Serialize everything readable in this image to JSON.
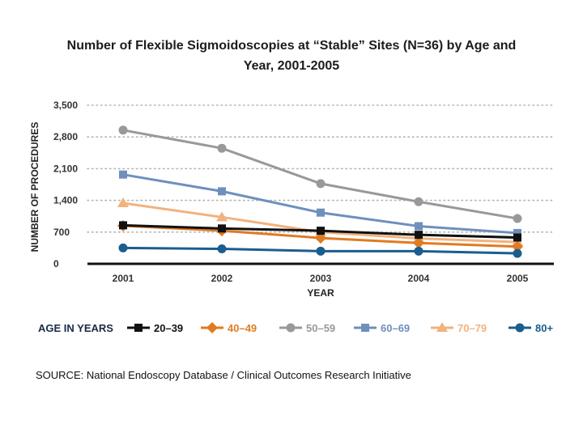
{
  "title_line1": "Number of Flexible Sigmoidoscopies at “Stable” Sites (N=36) by Age and",
  "title_line2": "Year, 2001-2005",
  "source": "SOURCE: National Endoscopy Database / Clinical Outcomes Research Initiative",
  "chart_data": {
    "type": "line",
    "title": "Number of Flexible Sigmoidoscopies at “Stable” Sites (N=36) by Age and Year, 2001-2005",
    "xlabel": "YEAR",
    "ylabel": "NUMBER OF PROCEDURES",
    "ylim": [
      0,
      3500
    ],
    "yticks": [
      0,
      700,
      1400,
      2100,
      2800,
      3500
    ],
    "ytick_labels": [
      "0",
      "700",
      "1,400",
      "2,100",
      "2,800",
      "3,500"
    ],
    "categories": [
      "2001",
      "2002",
      "2003",
      "2004",
      "2005"
    ],
    "legend_title": "AGE IN YEARS",
    "grid": "dotted horizontal",
    "series": [
      {
        "name": "20–39",
        "color": "#111111",
        "marker": "square",
        "values": [
          850,
          780,
          730,
          640,
          580
        ]
      },
      {
        "name": "40–49",
        "color": "#e07b22",
        "marker": "diamond",
        "values": [
          840,
          730,
          570,
          460,
          380
        ]
      },
      {
        "name": "50–59",
        "color": "#999999",
        "marker": "circle",
        "values": [
          2950,
          2550,
          1770,
          1370,
          1000
        ]
      },
      {
        "name": "60–69",
        "color": "#6f8fbd",
        "marker": "square",
        "values": [
          1970,
          1600,
          1130,
          830,
          680
        ]
      },
      {
        "name": "70–79",
        "color": "#f2b27e",
        "marker": "triangle",
        "values": [
          1340,
          1030,
          700,
          560,
          480
        ]
      },
      {
        "name": "80+",
        "color": "#1a5e8e",
        "marker": "circle",
        "values": [
          350,
          330,
          280,
          280,
          230
        ]
      }
    ]
  }
}
